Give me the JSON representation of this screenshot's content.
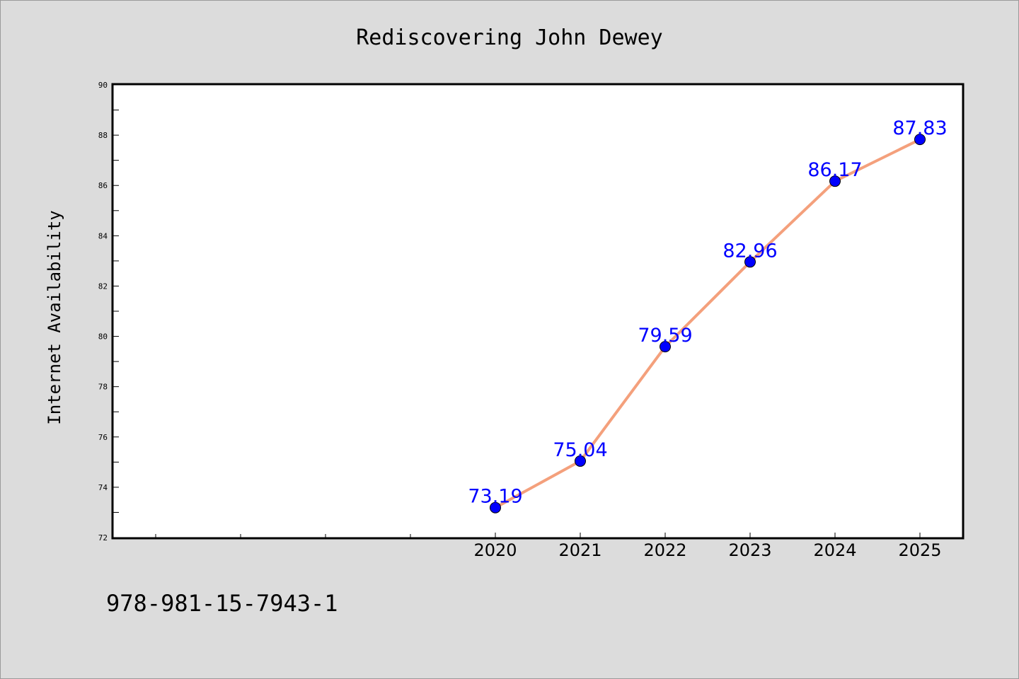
{
  "chart_data": {
    "type": "line",
    "title": "Rediscovering John Dewey",
    "xlabel": "",
    "ylabel": "Internet Availability",
    "x": [
      "2020",
      "2021",
      "2022",
      "2023",
      "2024",
      "2025"
    ],
    "series": [
      {
        "values": [
          73.19,
          75.04,
          79.59,
          82.96,
          86.17,
          87.83
        ]
      }
    ],
    "data_labels": [
      "73.19",
      "75.04",
      "79.59",
      "82.96",
      "86.17",
      "87.83"
    ],
    "y_ticks": [
      "72",
      "74",
      "76",
      "78",
      "80",
      "82",
      "84",
      "86",
      "88",
      "90"
    ],
    "ylim": [
      72,
      90
    ],
    "grid": false,
    "legend": "none",
    "line_color": "#f4a07c",
    "marker_color": "#0000ff",
    "label_color": "#0000ff"
  },
  "footer_text": "978-981-15-7943-1"
}
